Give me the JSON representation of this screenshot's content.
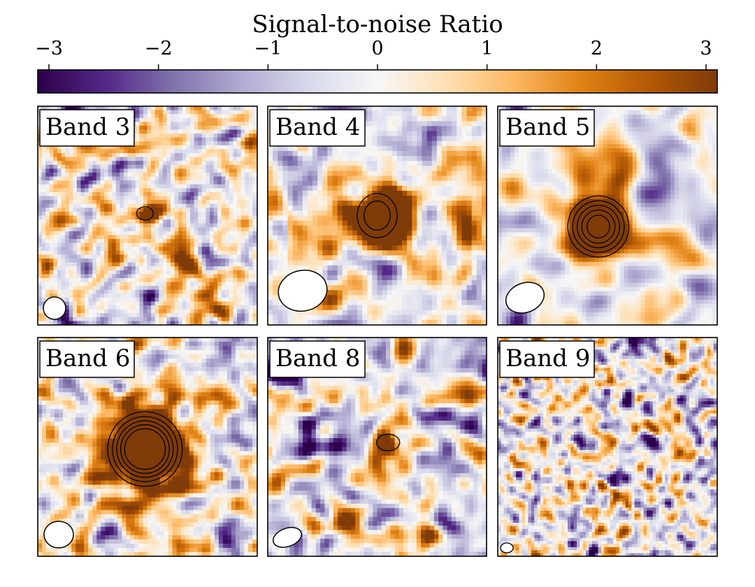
{
  "chart_data": {
    "type": "heatmap",
    "colorbar": {
      "title": "Signal-to-noise Ratio",
      "range": [
        -3,
        3
      ],
      "ticks": [
        -3,
        -2,
        -1,
        0,
        1,
        2,
        3
      ],
      "tick_labels": [
        "−3",
        "−2",
        "−1",
        "0",
        "1",
        "2",
        "3"
      ],
      "colormap": "PuOr_r",
      "color_stops": [
        "#2d004b",
        "#542788",
        "#8073ac",
        "#b2abd2",
        "#d8daeb",
        "#f7f7f7",
        "#fee0b6",
        "#fdb863",
        "#e08214",
        "#b35806",
        "#7f3b08"
      ]
    },
    "contours": {
      "positive_levels": [
        3,
        4,
        5,
        6,
        7
      ],
      "negative_levels": [
        -3
      ],
      "positive_color": "#000000",
      "negative_color": "#ffffff"
    },
    "panels": [
      {
        "label": "Band 3",
        "detection_snr": 4,
        "noise_scale": "fine"
      },
      {
        "label": "Band 4",
        "detection_snr": 5,
        "noise_scale": "coarse"
      },
      {
        "label": "Band 5",
        "detection_snr": 8,
        "noise_scale": "smooth"
      },
      {
        "label": "Band 6",
        "detection_snr": 10,
        "noise_scale": "medium"
      },
      {
        "label": "Band 8",
        "detection_snr": 4,
        "noise_scale": "medium"
      },
      {
        "label": "Band 9",
        "detection_snr": 0,
        "noise_scale": "very fine"
      }
    ]
  }
}
